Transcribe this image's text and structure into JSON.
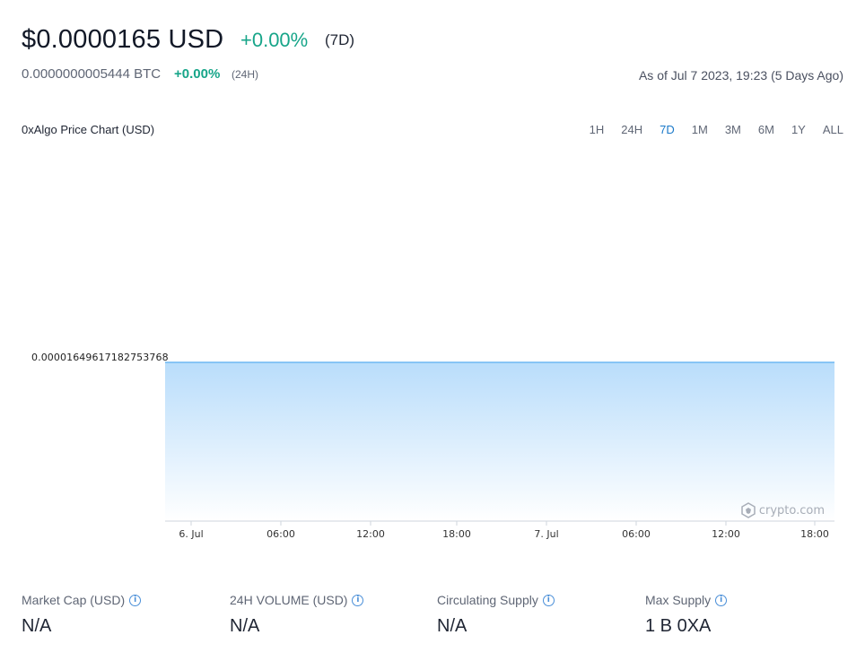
{
  "header": {
    "price": "$0.0000165 USD",
    "change_7d": "+0.00%",
    "period_7d": "(7D)",
    "price_btc": "0.0000000005444 BTC",
    "change_24h": "+0.00%",
    "period_24h": "(24H)",
    "as_of": "As of Jul 7 2023, 19:23 (5 Days Ago)"
  },
  "colors": {
    "positive": "#17a589",
    "active_range": "#1a79c9",
    "line": "#5aaef0",
    "fill_top": "#b9ddfb",
    "fill_bottom": "#ffffff"
  },
  "chart_header": {
    "title": "0xAlgo Price Chart (USD)",
    "ranges": [
      "1H",
      "24H",
      "7D",
      "1M",
      "3M",
      "6M",
      "1Y",
      "ALL"
    ],
    "active_range": "7D"
  },
  "chart_data": {
    "type": "area",
    "title": "0xAlgo Price Chart (USD)",
    "x": [
      "6. Jul",
      "06:00",
      "12:00",
      "18:00",
      "7. Jul",
      "06:00",
      "12:00",
      "18:00"
    ],
    "y_tick_labels": [
      "0.00001649617182753768"
    ],
    "series": [
      {
        "values": [
          1.649617182753768e-05,
          1.649617182753768e-05,
          1.649617182753768e-05,
          1.649617182753768e-05,
          1.649617182753768e-05,
          1.649617182753768e-05,
          1.649617182753768e-05,
          1.649617182753768e-05
        ]
      }
    ],
    "grid": false,
    "legend": "none"
  },
  "watermark": {
    "text": "crypto.com",
    "icon": "crypto-com-lion-icon"
  },
  "stats": [
    {
      "label": "Market Cap (USD)",
      "value": "N/A",
      "info_icon": "info-icon"
    },
    {
      "label": "24H VOLUME (USD)",
      "value": "N/A",
      "info_icon": "info-icon"
    },
    {
      "label": "Circulating Supply",
      "value": "N/A",
      "info_icon": "info-icon"
    },
    {
      "label": "Max Supply",
      "value": "1 B 0XA",
      "info_icon": "info-icon"
    }
  ]
}
